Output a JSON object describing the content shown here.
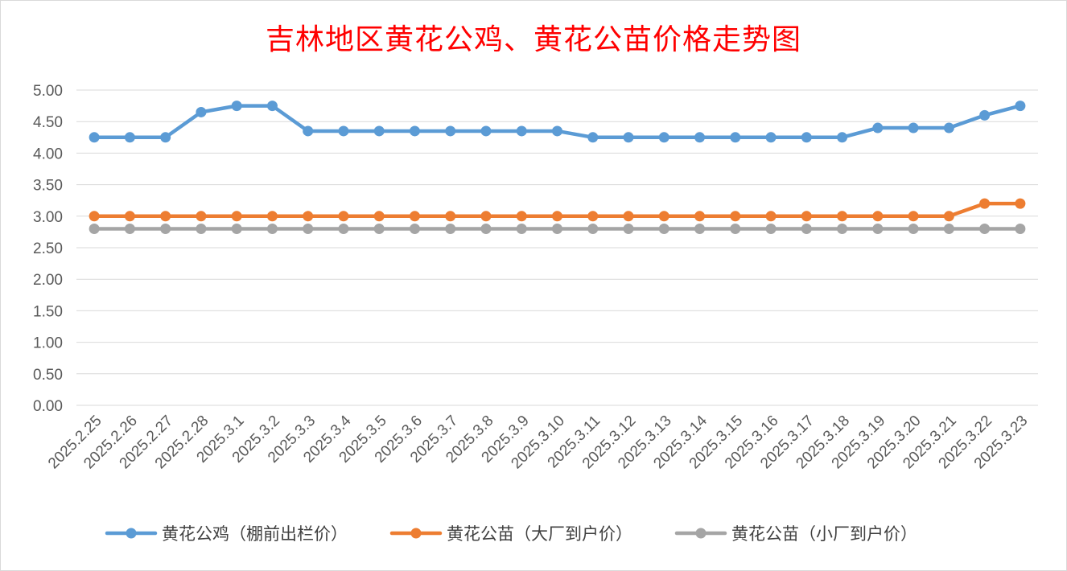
{
  "chart_data": {
    "type": "line",
    "title": "吉林地区黄花公鸡、黄花公苗价格走势图",
    "xlabel": "",
    "ylabel": "",
    "ylim": [
      0,
      5
    ],
    "ytick_step": 0.5,
    "yticks": [
      "0.00",
      "0.50",
      "1.00",
      "1.50",
      "2.00",
      "2.50",
      "3.00",
      "3.50",
      "4.00",
      "4.50",
      "5.00"
    ],
    "grid": true,
    "legend_position": "bottom",
    "categories": [
      "2025.2.25",
      "2025.2.26",
      "2025.2.27",
      "2025.2.28",
      "2025.3.1",
      "2025.3.2",
      "2025.3.3",
      "2025.3.4",
      "2025.3.5",
      "2025.3.6",
      "2025.3.7",
      "2025.3.8",
      "2025.3.9",
      "2025.3.10",
      "2025.3.11",
      "2025.3.12",
      "2025.3.13",
      "2025.3.14",
      "2025.3.15",
      "2025.3.16",
      "2025.3.17",
      "2025.3.18",
      "2025.3.19",
      "2025.3.20",
      "2025.3.21",
      "2025.3.22",
      "2025.3.23"
    ],
    "series": [
      {
        "name": "黄花公鸡（棚前出栏价）",
        "color": "#5b9bd5",
        "values": [
          4.25,
          4.25,
          4.25,
          4.65,
          4.75,
          4.75,
          4.35,
          4.35,
          4.35,
          4.35,
          4.35,
          4.35,
          4.35,
          4.35,
          4.25,
          4.25,
          4.25,
          4.25,
          4.25,
          4.25,
          4.25,
          4.25,
          4.4,
          4.4,
          4.4,
          4.6,
          4.75
        ]
      },
      {
        "name": "黄花公苗（大厂到户价）",
        "color": "#ed7d31",
        "values": [
          3.0,
          3.0,
          3.0,
          3.0,
          3.0,
          3.0,
          3.0,
          3.0,
          3.0,
          3.0,
          3.0,
          3.0,
          3.0,
          3.0,
          3.0,
          3.0,
          3.0,
          3.0,
          3.0,
          3.0,
          3.0,
          3.0,
          3.0,
          3.0,
          3.0,
          3.2,
          3.2
        ]
      },
      {
        "name": "黄花公苗（小厂到户价）",
        "color": "#a5a5a5",
        "values": [
          2.8,
          2.8,
          2.8,
          2.8,
          2.8,
          2.8,
          2.8,
          2.8,
          2.8,
          2.8,
          2.8,
          2.8,
          2.8,
          2.8,
          2.8,
          2.8,
          2.8,
          2.8,
          2.8,
          2.8,
          2.8,
          2.8,
          2.8,
          2.8,
          2.8,
          2.8,
          2.8
        ]
      }
    ]
  }
}
